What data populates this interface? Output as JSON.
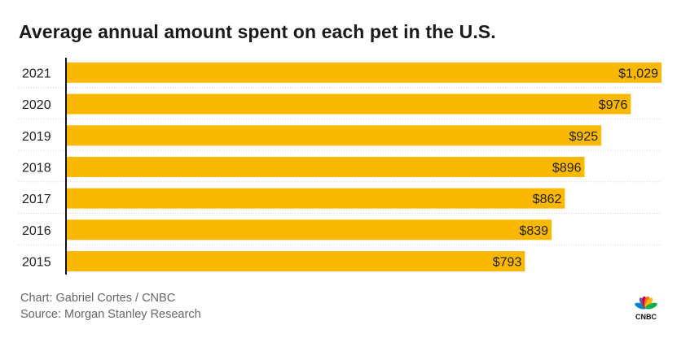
{
  "title": "Average annual amount spent on each pet in the U.S.",
  "credits": {
    "chart": "Chart: Gabriel Cortes / CNBC",
    "source": "Source: Morgan Stanley Research"
  },
  "logo": {
    "text": "CNBC",
    "icon": "peacock-icon",
    "colors": [
      "#0089cf",
      "#6460aa",
      "#cc004c",
      "#ff7112",
      "#fcb711",
      "#0db14b"
    ]
  },
  "chart_data": {
    "type": "bar",
    "orientation": "horizontal",
    "categories": [
      "2021",
      "2020",
      "2019",
      "2018",
      "2017",
      "2016",
      "2015"
    ],
    "values": [
      1029,
      976,
      925,
      896,
      862,
      839,
      793
    ],
    "labels": [
      "$1,029",
      "$976",
      "$925",
      "$896",
      "$862",
      "$839",
      "$793"
    ],
    "xlim": [
      0,
      1029
    ],
    "bar_color": "#fbb800",
    "grid": false,
    "legend": "none"
  }
}
